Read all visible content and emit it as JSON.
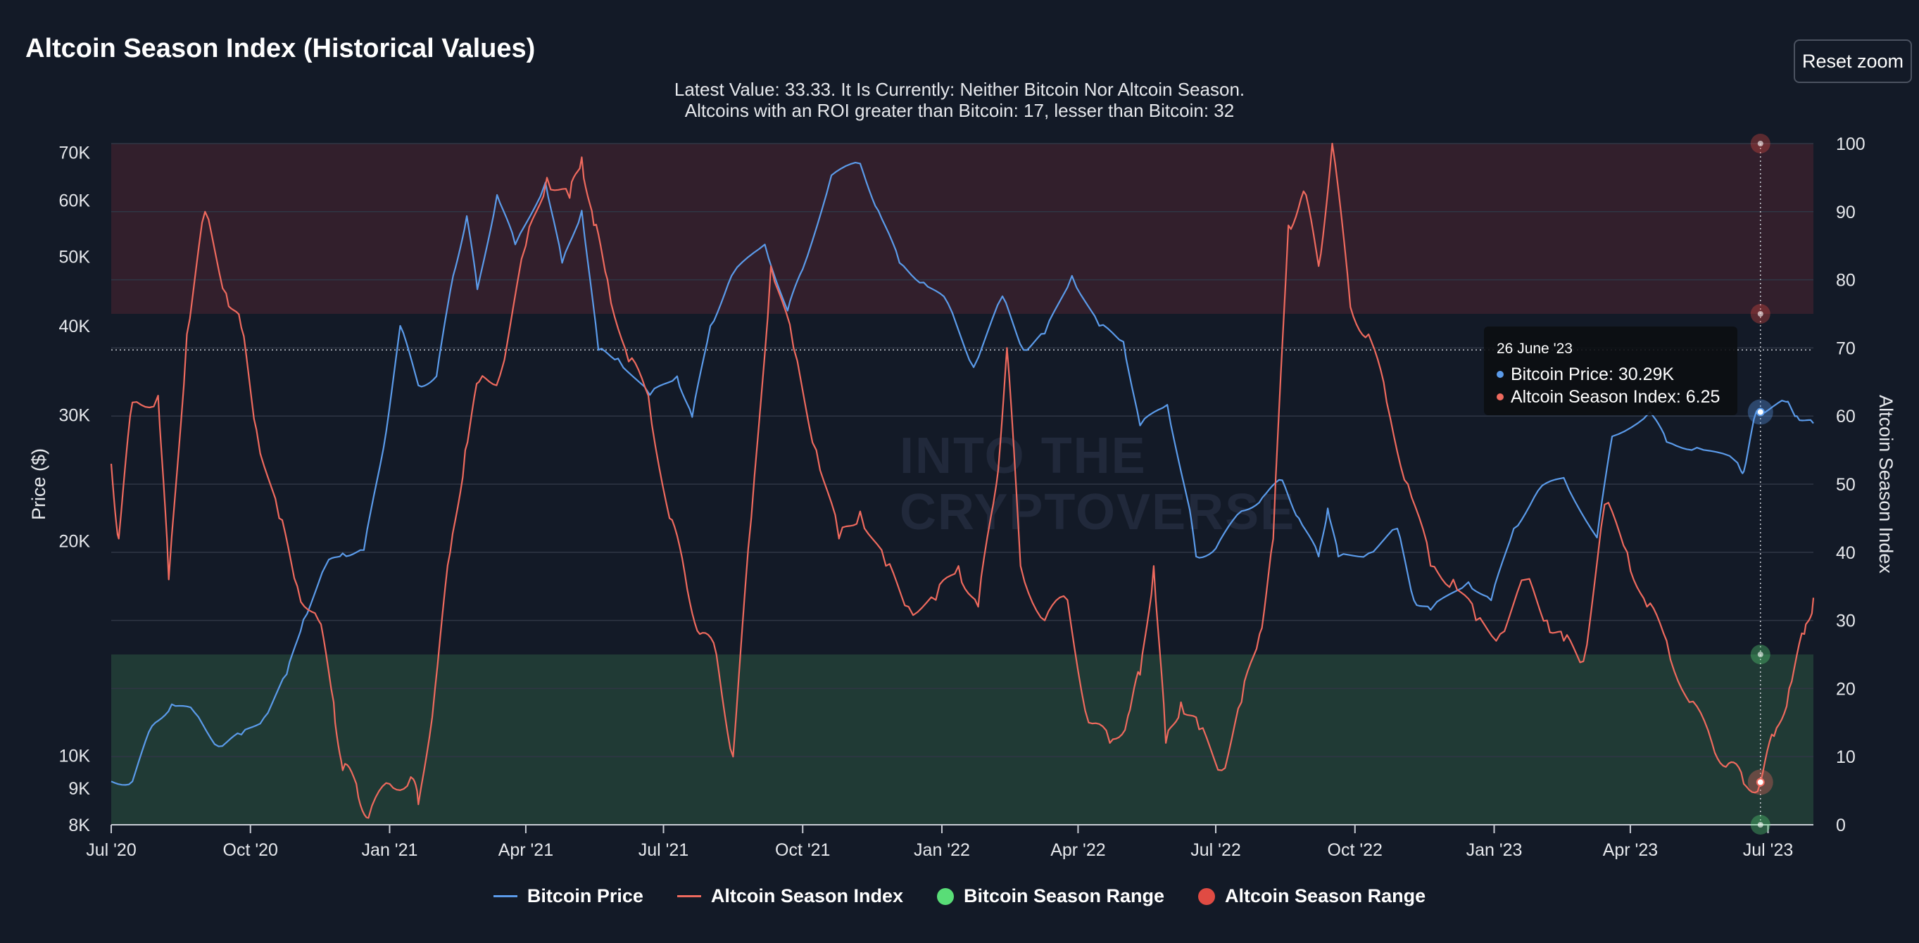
{
  "header": {
    "title": "Altcoin Season Index (Historical Values)",
    "subtitle_line1": "Latest Value: 33.33. It Is Currently: Neither Bitcoin Nor Altcoin Season.",
    "subtitle_line2": "Altcoins with an ROI greater than Bitcoin: 17, lesser than Bitcoin: 32",
    "reset_zoom_label": "Reset zoom"
  },
  "watermark": {
    "line1": "INTO THE",
    "line2": "CRYPTOVERSE"
  },
  "tooltip": {
    "date": "26 June '23",
    "btc_label": "Bitcoin Price: 30.29K",
    "alt_label": "Altcoin Season Index: 6.25"
  },
  "legend": [
    {
      "label": "Bitcoin Price",
      "kind": "line",
      "color": "#5b9bea"
    },
    {
      "label": "Altcoin Season Index",
      "kind": "line",
      "color": "#ef6a5e"
    },
    {
      "label": "Bitcoin Season Range",
      "kind": "dot",
      "color": "#59dd77"
    },
    {
      "label": "Altcoin Season Range",
      "kind": "dot",
      "color": "#e04b43"
    }
  ],
  "colors": {
    "btc": "#5b9bea",
    "alt": "#ef6a5e",
    "altcoin_band": "#321f2c",
    "bitcoin_band": "#203a35",
    "grid": "#2f3645",
    "background": "#131a27"
  },
  "chart_data": {
    "type": "line",
    "x_ticks": [
      "Jul '20",
      "Oct '20",
      "Jan '21",
      "Apr '21",
      "Jul '21",
      "Oct '21",
      "Jan '22",
      "Apr '22",
      "Jul '22",
      "Oct '22",
      "Jan '23",
      "Apr '23",
      "Jul '23"
    ],
    "x_range": [
      "2020-07-01",
      "2023-07-31"
    ],
    "y_left": {
      "label": "Price ($)",
      "scale": "log",
      "ticks": [
        8000,
        9000,
        10000,
        20000,
        30000,
        40000,
        50000,
        60000,
        70000
      ],
      "tick_labels": [
        "8K",
        "9K",
        "10K",
        "20K",
        "30K",
        "40K",
        "50K",
        "60K",
        "70K"
      ],
      "range": [
        8000,
        72000
      ]
    },
    "y_right": {
      "label": "Altcoin Season Index",
      "scale": "linear",
      "ticks": [
        0,
        10,
        20,
        30,
        40,
        50,
        60,
        70,
        80,
        90,
        100
      ],
      "range": [
        0,
        100
      ]
    },
    "bands": [
      {
        "name": "Altcoin Season Range",
        "from": 75,
        "to": 100
      },
      {
        "name": "Bitcoin Season Range",
        "from": 0,
        "to": 25
      }
    ],
    "reference_line_price": 37000,
    "crosshair_date": "2023-06-26",
    "series": [
      {
        "name": "Bitcoin Price",
        "axis": "left",
        "points": [
          [
            "2020-07-01",
            9200
          ],
          [
            "2020-07-15",
            9200
          ],
          [
            "2020-07-28",
            11000
          ],
          [
            "2020-08-10",
            11800
          ],
          [
            "2020-08-25",
            11500
          ],
          [
            "2020-09-10",
            10300
          ],
          [
            "2020-09-25",
            10700
          ],
          [
            "2020-10-10",
            11300
          ],
          [
            "2020-10-25",
            13000
          ],
          [
            "2020-11-05",
            15500
          ],
          [
            "2020-11-20",
            18500
          ],
          [
            "2020-12-01",
            19200
          ],
          [
            "2020-12-15",
            19400
          ],
          [
            "2020-12-28",
            27000
          ],
          [
            "2021-01-08",
            40000
          ],
          [
            "2021-01-20",
            33000
          ],
          [
            "2021-02-01",
            34000
          ],
          [
            "2021-02-12",
            47000
          ],
          [
            "2021-02-21",
            57000
          ],
          [
            "2021-02-28",
            45000
          ],
          [
            "2021-03-13",
            61000
          ],
          [
            "2021-03-25",
            52000
          ],
          [
            "2021-04-14",
            63500
          ],
          [
            "2021-04-25",
            49000
          ],
          [
            "2021-05-08",
            58000
          ],
          [
            "2021-05-19",
            37000
          ],
          [
            "2021-06-01",
            36000
          ],
          [
            "2021-06-22",
            32000
          ],
          [
            "2021-07-10",
            34000
          ],
          [
            "2021-07-20",
            29800
          ],
          [
            "2021-08-01",
            40000
          ],
          [
            "2021-08-15",
            47000
          ],
          [
            "2021-09-06",
            52000
          ],
          [
            "2021-09-21",
            42000
          ],
          [
            "2021-10-01",
            48000
          ],
          [
            "2021-10-20",
            65000
          ],
          [
            "2021-11-08",
            67500
          ],
          [
            "2021-11-20",
            58000
          ],
          [
            "2021-12-04",
            49000
          ],
          [
            "2021-12-20",
            46000
          ],
          [
            "2022-01-05",
            43000
          ],
          [
            "2022-01-22",
            35000
          ],
          [
            "2022-02-10",
            44000
          ],
          [
            "2022-02-24",
            37000
          ],
          [
            "2022-03-10",
            39000
          ],
          [
            "2022-03-28",
            47000
          ],
          [
            "2022-04-15",
            40000
          ],
          [
            "2022-05-01",
            38000
          ],
          [
            "2022-05-12",
            29000
          ],
          [
            "2022-05-30",
            31000
          ],
          [
            "2022-06-13",
            22500
          ],
          [
            "2022-06-18",
            19000
          ],
          [
            "2022-07-01",
            19500
          ],
          [
            "2022-07-18",
            22000
          ],
          [
            "2022-08-01",
            23000
          ],
          [
            "2022-08-14",
            24300
          ],
          [
            "2022-08-25",
            21500
          ],
          [
            "2022-09-07",
            19000
          ],
          [
            "2022-09-13",
            22200
          ],
          [
            "2022-09-20",
            19000
          ],
          [
            "2022-10-10",
            19200
          ],
          [
            "2022-10-29",
            20800
          ],
          [
            "2022-11-09",
            16500
          ],
          [
            "2022-11-20",
            16000
          ],
          [
            "2022-12-15",
            17500
          ],
          [
            "2022-12-30",
            16500
          ],
          [
            "2023-01-14",
            20800
          ],
          [
            "2023-01-30",
            23500
          ],
          [
            "2023-02-16",
            24500
          ],
          [
            "2023-03-10",
            20200
          ],
          [
            "2023-03-20",
            28000
          ],
          [
            "2023-04-14",
            30300
          ],
          [
            "2023-04-25",
            27500
          ],
          [
            "2023-05-15",
            27000
          ],
          [
            "2023-06-10",
            25800
          ],
          [
            "2023-06-15",
            25000
          ],
          [
            "2023-06-23",
            30200
          ],
          [
            "2023-06-26",
            30290
          ],
          [
            "2023-07-13",
            31300
          ],
          [
            "2023-07-20",
            29900
          ],
          [
            "2023-07-31",
            29200
          ]
        ]
      },
      {
        "name": "Altcoin Season Index",
        "axis": "right",
        "points": [
          [
            "2020-07-01",
            53
          ],
          [
            "2020-07-06",
            42
          ],
          [
            "2020-07-15",
            62
          ],
          [
            "2020-08-01",
            63
          ],
          [
            "2020-08-08",
            36
          ],
          [
            "2020-08-20",
            72
          ],
          [
            "2020-09-01",
            90
          ],
          [
            "2020-09-15",
            78
          ],
          [
            "2020-09-25",
            73
          ],
          [
            "2020-10-05",
            58
          ],
          [
            "2020-10-20",
            45
          ],
          [
            "2020-11-01",
            35
          ],
          [
            "2020-11-15",
            30
          ],
          [
            "2020-11-25",
            18
          ],
          [
            "2020-12-01",
            8
          ],
          [
            "2020-12-10",
            6
          ],
          [
            "2020-12-18",
            1
          ],
          [
            "2021-01-01",
            6
          ],
          [
            "2021-01-15",
            7
          ],
          [
            "2021-01-20",
            3
          ],
          [
            "2021-01-31",
            20
          ],
          [
            "2021-02-10",
            40
          ],
          [
            "2021-02-20",
            55
          ],
          [
            "2021-03-01",
            65
          ],
          [
            "2021-03-15",
            66
          ],
          [
            "2021-04-01",
            85
          ],
          [
            "2021-04-15",
            95
          ],
          [
            "2021-04-30",
            92
          ],
          [
            "2021-05-08",
            98
          ],
          [
            "2021-05-16",
            88
          ],
          [
            "2021-05-25",
            80
          ],
          [
            "2021-06-08",
            68
          ],
          [
            "2021-06-21",
            63
          ],
          [
            "2021-07-05",
            45
          ],
          [
            "2021-07-15",
            37
          ],
          [
            "2021-07-25",
            28
          ],
          [
            "2021-08-05",
            25
          ],
          [
            "2021-08-16",
            10
          ],
          [
            "2021-08-28",
            45
          ],
          [
            "2021-09-10",
            82
          ],
          [
            "2021-09-25",
            70
          ],
          [
            "2021-10-10",
            55
          ],
          [
            "2021-10-25",
            42
          ],
          [
            "2021-11-08",
            46
          ],
          [
            "2021-11-25",
            38
          ],
          [
            "2021-12-10",
            32
          ],
          [
            "2021-12-28",
            33
          ],
          [
            "2022-01-12",
            38
          ],
          [
            "2022-01-25",
            32
          ],
          [
            "2022-02-06",
            50
          ],
          [
            "2022-02-13",
            70
          ],
          [
            "2022-02-22",
            38
          ],
          [
            "2022-03-10",
            30
          ],
          [
            "2022-03-25",
            33
          ],
          [
            "2022-04-08",
            15
          ],
          [
            "2022-04-22",
            12
          ],
          [
            "2022-05-04",
            16
          ],
          [
            "2022-05-12",
            22
          ],
          [
            "2022-05-21",
            38
          ],
          [
            "2022-05-29",
            12
          ],
          [
            "2022-06-08",
            18
          ],
          [
            "2022-06-20",
            14
          ],
          [
            "2022-07-05",
            8
          ],
          [
            "2022-07-18",
            18
          ],
          [
            "2022-07-30",
            28
          ],
          [
            "2022-08-08",
            42
          ],
          [
            "2022-08-18",
            88
          ],
          [
            "2022-08-28",
            93
          ],
          [
            "2022-09-07",
            82
          ],
          [
            "2022-09-16",
            100
          ],
          [
            "2022-09-28",
            76
          ],
          [
            "2022-10-10",
            72
          ],
          [
            "2022-10-22",
            62
          ],
          [
            "2022-11-05",
            50
          ],
          [
            "2022-11-20",
            38
          ],
          [
            "2022-12-05",
            36
          ],
          [
            "2022-12-20",
            30
          ],
          [
            "2023-01-05",
            28
          ],
          [
            "2023-01-22",
            36
          ],
          [
            "2023-02-05",
            30
          ],
          [
            "2023-02-16",
            27
          ],
          [
            "2023-03-01",
            24
          ],
          [
            "2023-03-15",
            47
          ],
          [
            "2023-03-30",
            40
          ],
          [
            "2023-04-12",
            32
          ],
          [
            "2023-04-25",
            27
          ],
          [
            "2023-05-10",
            18
          ],
          [
            "2023-05-25",
            12
          ],
          [
            "2023-06-05",
            9
          ],
          [
            "2023-06-15",
            6
          ],
          [
            "2023-06-26",
            6.25
          ],
          [
            "2023-07-05",
            13
          ],
          [
            "2023-07-15",
            20
          ],
          [
            "2023-07-25",
            28
          ],
          [
            "2023-07-31",
            33.33
          ]
        ]
      }
    ]
  }
}
